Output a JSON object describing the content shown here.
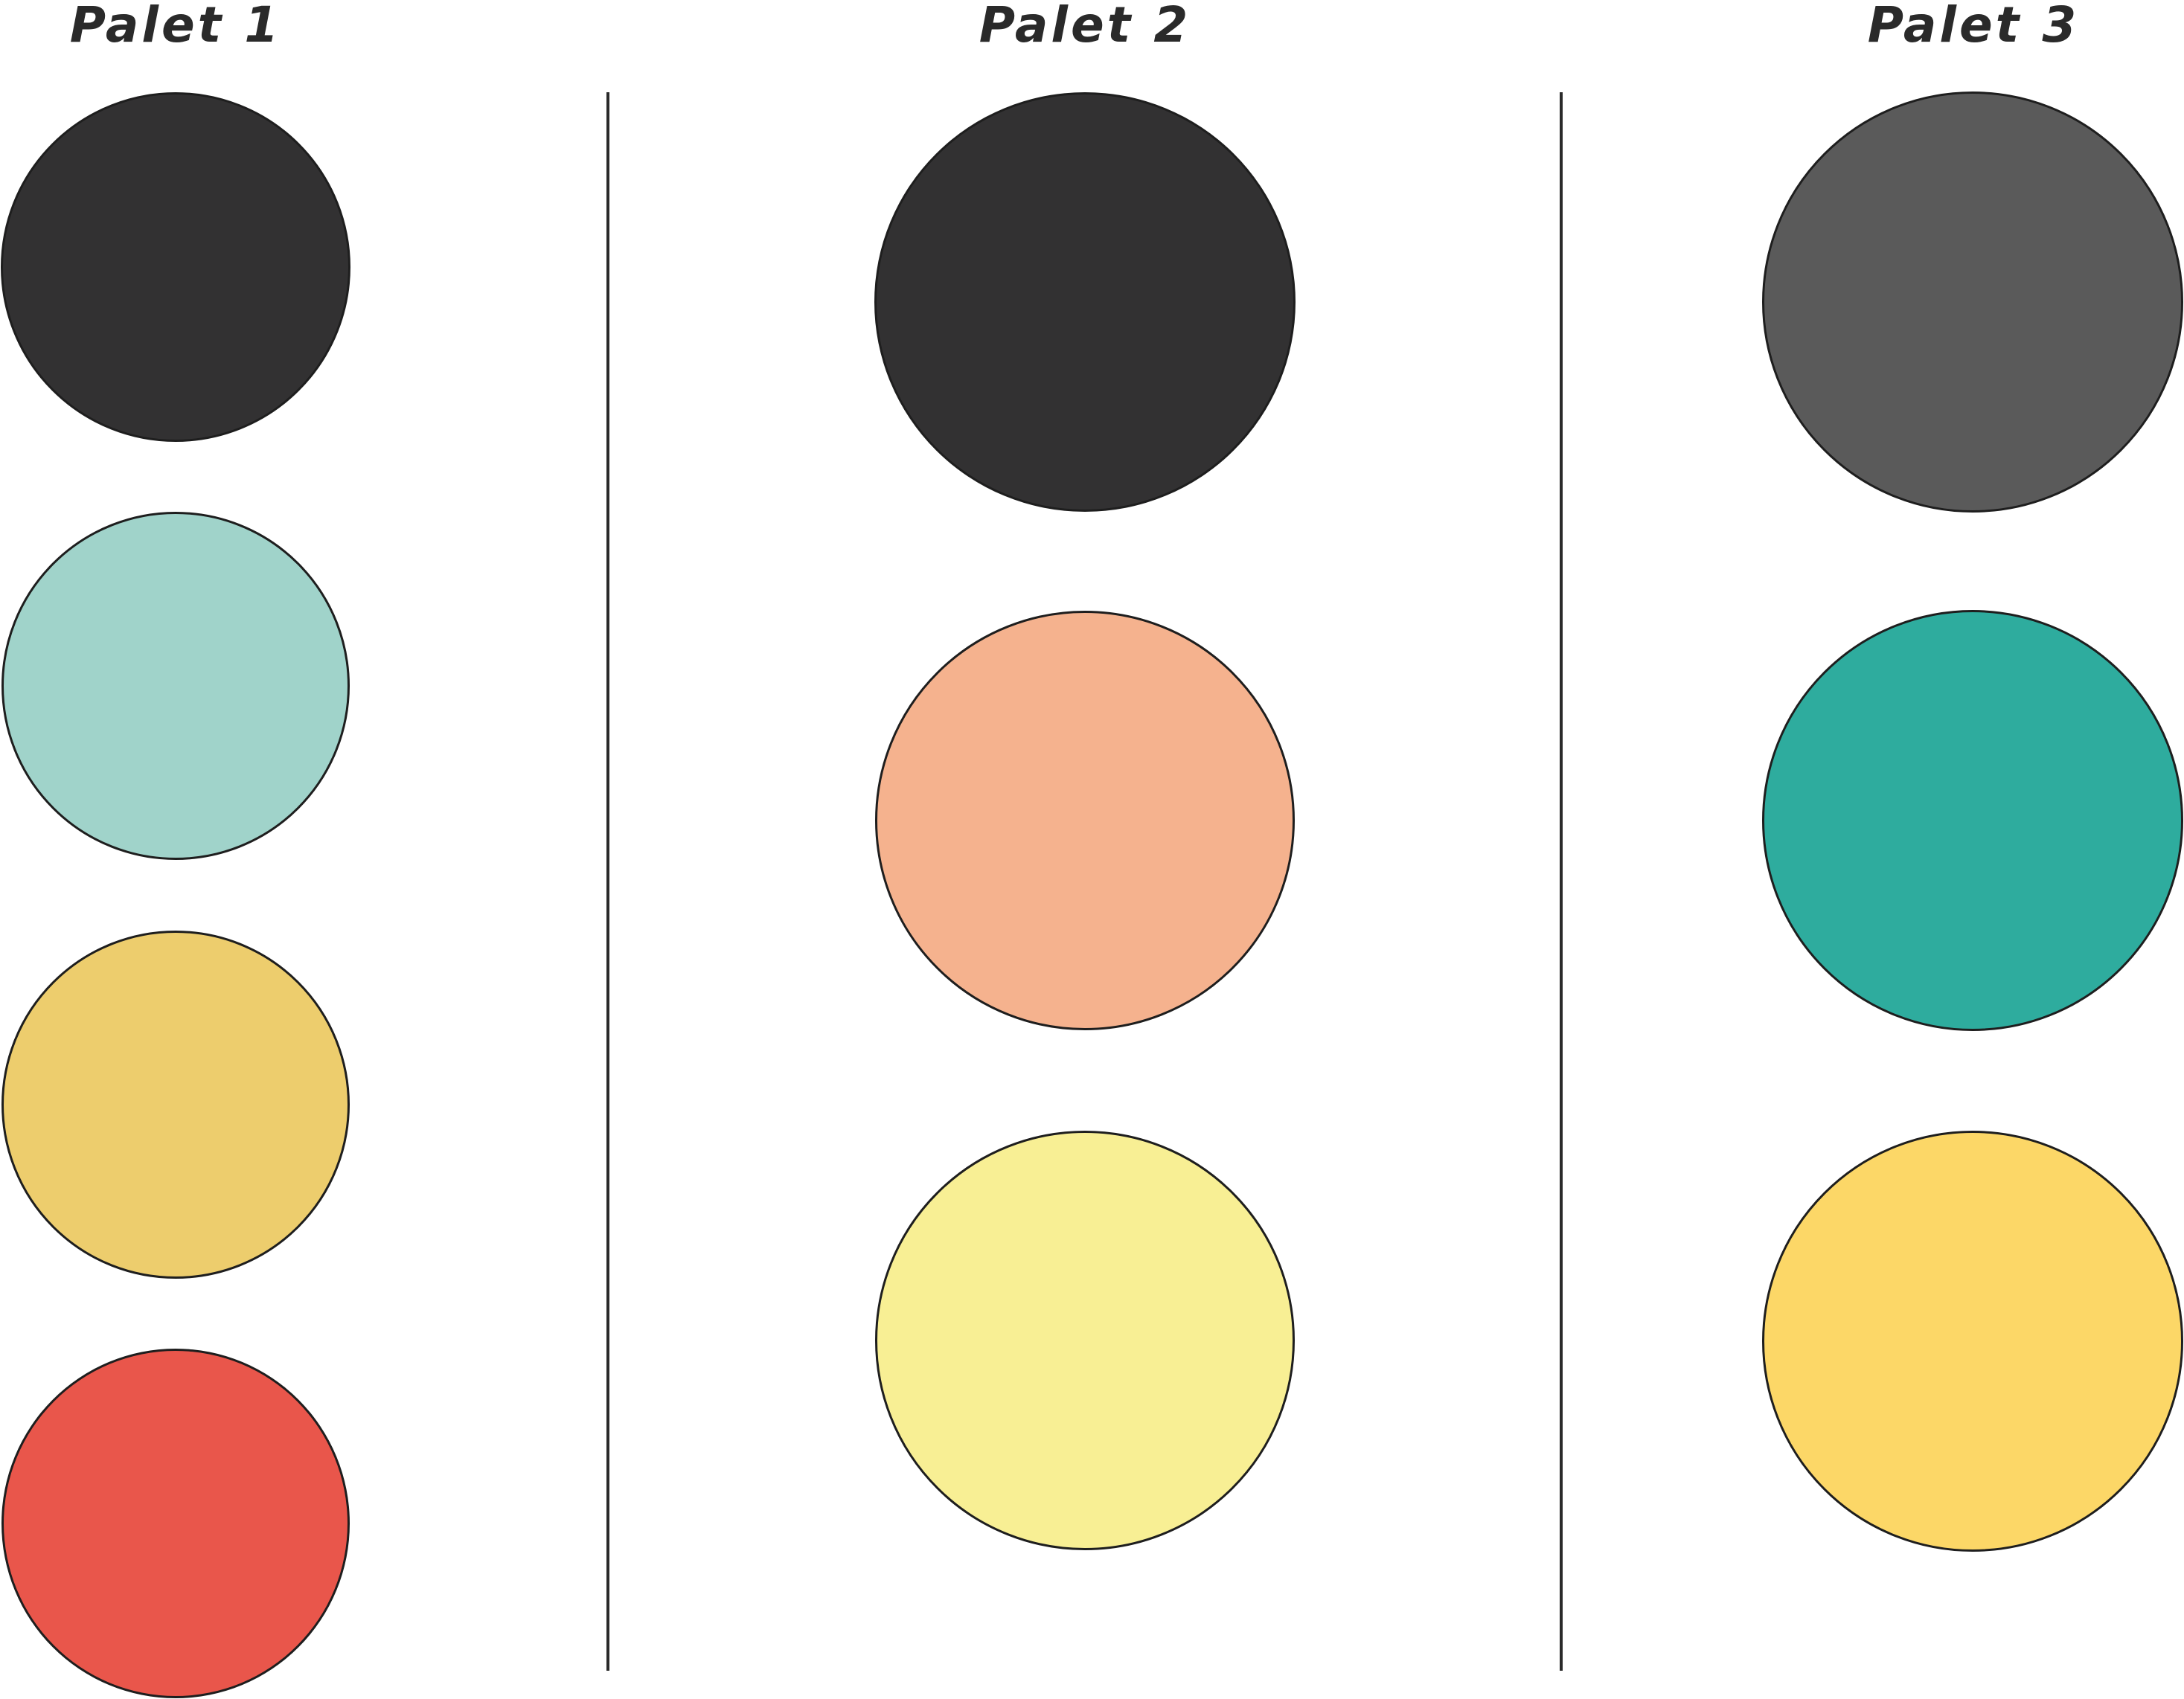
{
  "palettes": [
    {
      "title": "Palet 1",
      "swatches": [
        {
          "color": "#323132"
        },
        {
          "color": "#A0D3CA"
        },
        {
          "color": "#EDCD6D"
        },
        {
          "color": "#E9564B"
        }
      ]
    },
    {
      "title": "Palet 2",
      "swatches": [
        {
          "color": "#323132"
        },
        {
          "color": "#F5B28E"
        },
        {
          "color": "#F8EF94"
        }
      ]
    },
    {
      "title": "Palet 3",
      "swatches": [
        {
          "color": "#5A5A5A"
        },
        {
          "color": "#2EAC9E"
        },
        {
          "color": "#FCD767"
        }
      ]
    }
  ]
}
